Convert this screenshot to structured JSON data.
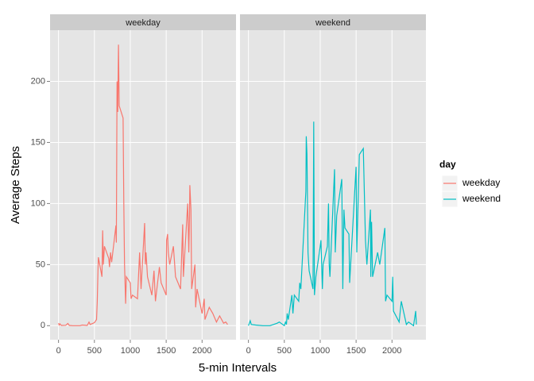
{
  "chart_data": {
    "type": "line",
    "xlabel": "5-min Intervals",
    "ylabel": "Average Steps",
    "legend_title": "day",
    "grid": true,
    "xlim": [
      -117.75,
      2472.75
    ],
    "ylim": [
      -11.5,
      241.9
    ],
    "xticks": [
      0,
      500,
      1000,
      1500,
      2000
    ],
    "yticks": [
      0,
      50,
      100,
      150,
      200
    ],
    "series": [
      {
        "name": "weekday",
        "color": "#F8766D",
        "x": [
          0,
          10,
          20,
          40,
          100,
          130,
          150,
          200,
          300,
          330,
          400,
          425,
          440,
          500,
          530,
          540,
          550,
          555,
          605,
          615,
          625,
          640,
          700,
          710,
          725,
          740,
          800,
          805,
          815,
          825,
          835,
          845,
          900,
          910,
          920,
          935,
          945,
          1000,
          1010,
          1030,
          1100,
          1130,
          1150,
          1200,
          1210,
          1220,
          1240,
          1300,
          1330,
          1350,
          1405,
          1430,
          1500,
          1505,
          1520,
          1530,
          1550,
          1600,
          1630,
          1700,
          1730,
          1740,
          1800,
          1815,
          1825,
          1830,
          1845,
          1855,
          1900,
          1910,
          1930,
          2000,
          2030,
          2040,
          2100,
          2150,
          2200,
          2245,
          2300,
          2330,
          2355
        ],
        "values": [
          2,
          0.5,
          1.5,
          0.2,
          0.3,
          1.8,
          0.2,
          0,
          0,
          0.5,
          0.2,
          3,
          1,
          2.5,
          5,
          20,
          45,
          56,
          40,
          78,
          50,
          65,
          55,
          48,
          60,
          52,
          82,
          68,
          200,
          175,
          230,
          180,
          170,
          100,
          50,
          18,
          40,
          35,
          22,
          25,
          22,
          60,
          30,
          84,
          50,
          60,
          40,
          25,
          45,
          20,
          48,
          35,
          25,
          70,
          75,
          60,
          50,
          65,
          40,
          30,
          83,
          40,
          100,
          60,
          90,
          115,
          95,
          30,
          50,
          15,
          30,
          10,
          22,
          5,
          15,
          10,
          3,
          8,
          2,
          3,
          1
        ]
      },
      {
        "name": "weekend",
        "color": "#00BFC4",
        "x": [
          0,
          25,
          40,
          100,
          200,
          300,
          400,
          430,
          500,
          515,
          530,
          540,
          555,
          605,
          620,
          640,
          700,
          715,
          730,
          800,
          805,
          815,
          830,
          845,
          900,
          910,
          920,
          940,
          1000,
          1010,
          1030,
          1040,
          1100,
          1115,
          1125,
          1135,
          1200,
          1210,
          1230,
          1300,
          1315,
          1330,
          1345,
          1400,
          1410,
          1500,
          1510,
          1545,
          1600,
          1630,
          1650,
          1700,
          1705,
          1715,
          1730,
          1800,
          1830,
          1900,
          1910,
          1930,
          2000,
          2010,
          2020,
          2100,
          2130,
          2200,
          2230,
          2300,
          2330,
          2340
        ],
        "values": [
          0,
          4,
          1,
          0.5,
          0,
          0,
          2,
          3,
          0,
          3,
          1,
          10,
          5,
          25,
          10,
          25,
          20,
          35,
          30,
          110,
          155,
          140,
          60,
          45,
          30,
          167,
          25,
          40,
          65,
          70,
          30,
          50,
          65,
          100,
          50,
          40,
          128,
          60,
          90,
          120,
          30,
          95,
          80,
          75,
          35,
          130,
          60,
          140,
          145,
          70,
          50,
          95,
          40,
          85,
          40,
          60,
          50,
          80,
          20,
          25,
          20,
          40,
          12,
          3,
          20,
          1,
          3,
          0,
          12,
          1
        ]
      }
    ]
  }
}
